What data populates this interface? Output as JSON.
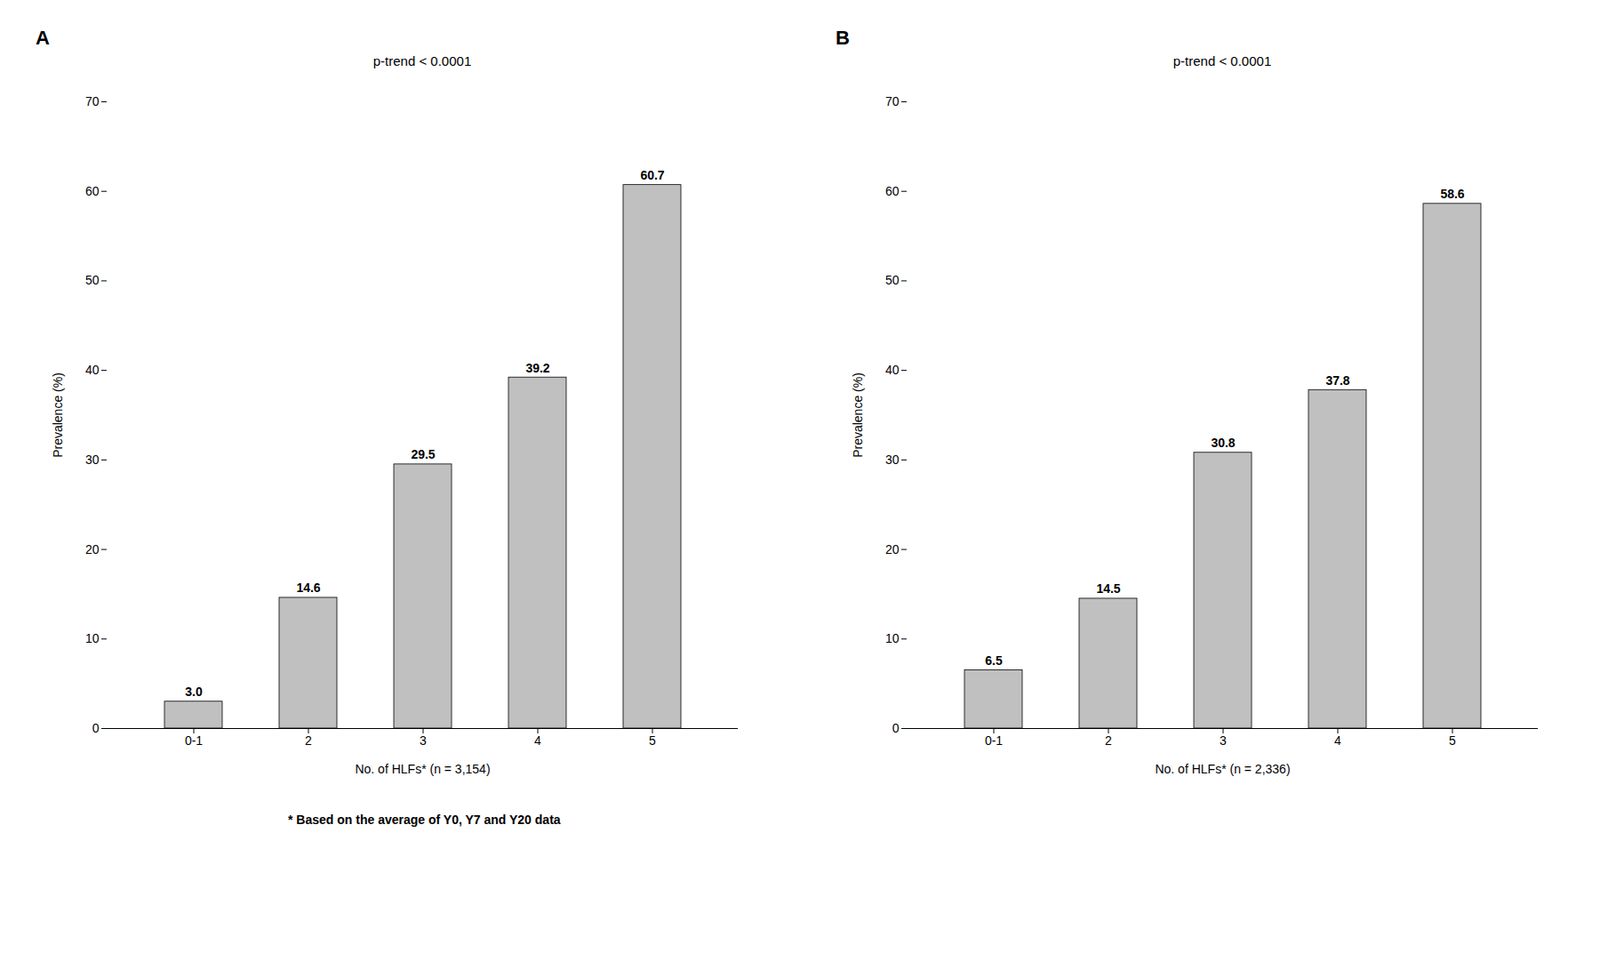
{
  "chart_data": [
    {
      "type": "bar",
      "panel_label": "A",
      "title": "p-trend < 0.0001",
      "categories": [
        "0-1",
        "2",
        "3",
        "4",
        "5"
      ],
      "values": [
        3.0,
        14.6,
        29.5,
        39.2,
        60.7
      ],
      "value_labels": [
        "3.0",
        "14.6",
        "29.5",
        "39.2",
        "60.7"
      ],
      "data_labels": true,
      "color": "#c0c0c0",
      "xlabel": "No. of HLFs* (n = 3,154)",
      "ylabel": "Prevalence (%)",
      "ylim": [
        0,
        70
      ],
      "yticks": [
        0,
        10,
        20,
        30,
        40,
        50,
        60,
        70
      ],
      "grid": false
    },
    {
      "type": "bar",
      "panel_label": "B",
      "title": "p-trend < 0.0001",
      "categories": [
        "0-1",
        "2",
        "3",
        "4",
        "5"
      ],
      "values": [
        6.5,
        14.5,
        30.8,
        37.8,
        58.6
      ],
      "value_labels": [
        "6.5",
        "14.5",
        "30.8",
        "37.8",
        "58.6"
      ],
      "data_labels": true,
      "color": "#c0c0c0",
      "xlabel": "No. of HLFs* (n = 2,336)",
      "ylabel": "Prevalence (%)",
      "ylim": [
        0,
        70
      ],
      "yticks": [
        0,
        10,
        20,
        30,
        40,
        50,
        60,
        70
      ],
      "grid": false
    }
  ],
  "footnote": "* Based on the average of Y0, Y7 and Y20 data"
}
